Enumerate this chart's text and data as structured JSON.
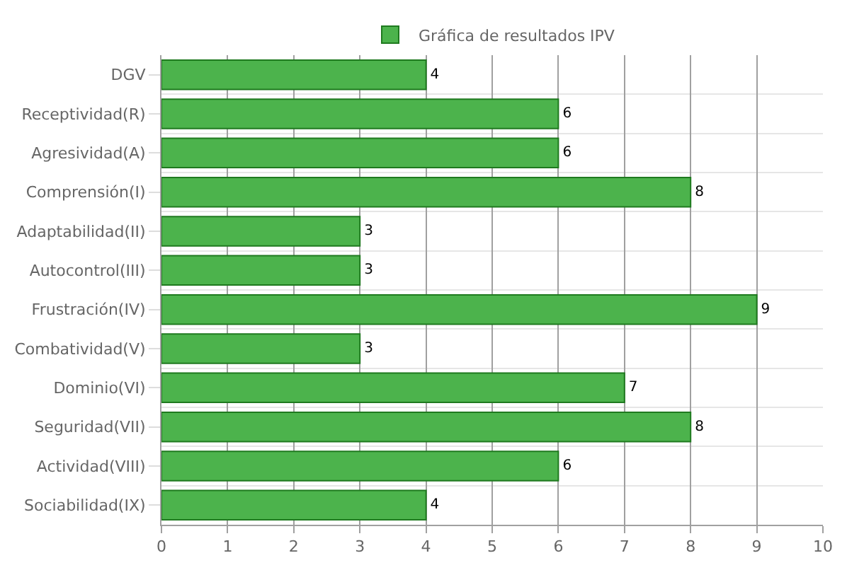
{
  "chart_data": {
    "type": "bar",
    "orientation": "horizontal",
    "categories": [
      "DGV",
      "Receptividad(R)",
      "Agresividad(A)",
      "Comprensión(I)",
      "Adaptabilidad(II)",
      "Autocontrol(III)",
      "Frustración(IV)",
      "Combatividad(V)",
      "Dominio(VI)",
      "Seguridad(VII)",
      "Actividad(VIII)",
      "Sociabilidad(IX)"
    ],
    "series": [
      {
        "name": "Gráfica de resultados IPV",
        "color": "#4cb34c",
        "values": [
          4,
          6,
          6,
          8,
          3,
          3,
          9,
          3,
          7,
          8,
          6,
          4
        ]
      }
    ],
    "xlim": [
      0,
      10
    ],
    "xticks": [
      0,
      1,
      2,
      3,
      4,
      5,
      6,
      7,
      8,
      9,
      10
    ],
    "grid": true,
    "legend": "top",
    "data_labels": true
  }
}
